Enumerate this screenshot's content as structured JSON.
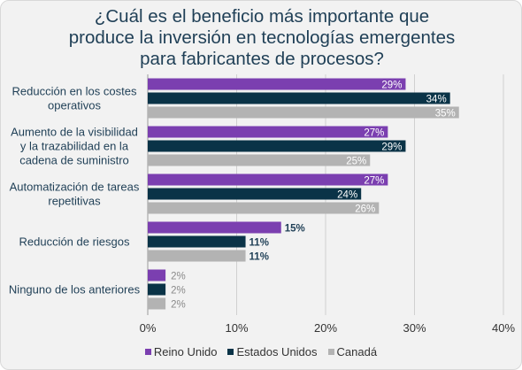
{
  "chart_data": {
    "type": "bar",
    "orientation": "horizontal",
    "title_lines": [
      "¿Cuál es el beneficio más importante que",
      "produce la inversión en tecnologías emergentes",
      "para fabricantes de procesos?"
    ],
    "categories": [
      [
        "Reducción en los costes",
        "operativos"
      ],
      [
        "Aumento de la visibilidad",
        "y la trazabilidad en la",
        "cadena de suministro"
      ],
      [
        "Automatización de tareas",
        "repetitivas"
      ],
      [
        "Reducción de riesgos"
      ],
      [
        "Ninguno de los anteriores"
      ]
    ],
    "series": [
      {
        "name": "Reino Unido",
        "color": "#7b3fb0",
        "values": [
          29,
          27,
          27,
          15,
          2
        ],
        "labels": [
          "29%",
          "27%",
          "27%",
          "15%",
          "2%"
        ]
      },
      {
        "name": "Estados Unidos",
        "color": "#0a3347",
        "values": [
          34,
          29,
          24,
          11,
          2
        ],
        "labels": [
          "34%",
          "29%",
          "24%",
          "11%",
          "2%"
        ]
      },
      {
        "name": "Canadá",
        "color": "#b3b3b3",
        "values": [
          35,
          25,
          26,
          11,
          2
        ],
        "labels": [
          "35%",
          "25%",
          "26%",
          "11%",
          "2%"
        ]
      }
    ],
    "xlim": [
      0,
      40
    ],
    "xticks": [
      {
        "value": 0,
        "label": "0%"
      },
      {
        "value": 10,
        "label": "10%"
      },
      {
        "value": 20,
        "label": "20%"
      },
      {
        "value": 30,
        "label": "30%"
      },
      {
        "value": 40,
        "label": "40%"
      }
    ],
    "grid": true,
    "legend_position": "bottom"
  }
}
